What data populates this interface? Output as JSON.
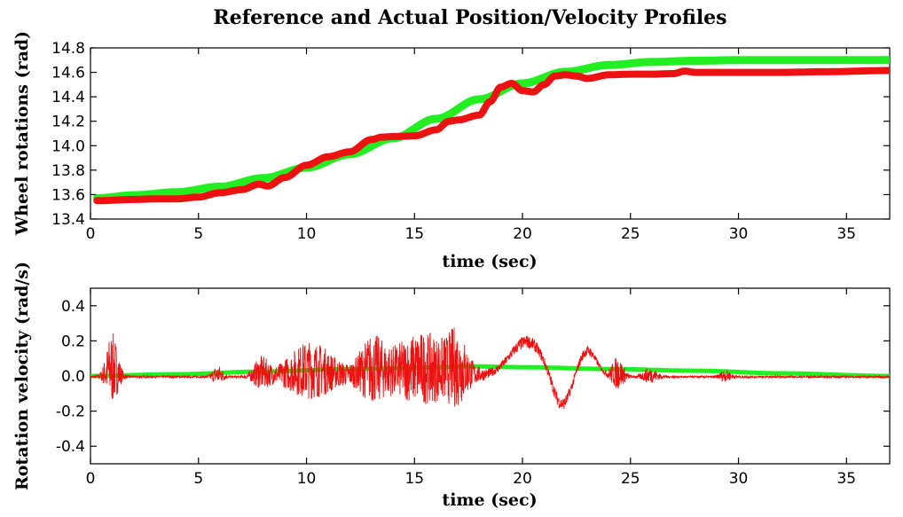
{
  "title": "Reference and Actual Position/Velocity Profiles",
  "colors": {
    "reference": "#22ee22",
    "actual": "#ee1111"
  },
  "chart_data": [
    {
      "type": "line",
      "xlabel": "time (sec)",
      "ylabel": "Wheel rotations (rad)",
      "xlim": [
        0,
        37
      ],
      "ylim": [
        13.4,
        14.8
      ],
      "xticks": [
        "0",
        "5",
        "10",
        "15",
        "20",
        "25",
        "30",
        "35"
      ],
      "yticks": [
        "13.4",
        "13.6",
        "13.8",
        "14.0",
        "14.2",
        "14.4",
        "14.6",
        "14.8"
      ],
      "series": [
        {
          "role": "reference",
          "x": [
            0.3,
            2,
            4,
            6,
            8,
            10,
            12,
            14,
            16,
            18,
            20,
            22,
            24,
            26,
            28,
            30,
            32,
            34,
            37
          ],
          "y": [
            13.57,
            13.595,
            13.62,
            13.665,
            13.735,
            13.82,
            13.93,
            14.06,
            14.22,
            14.38,
            14.51,
            14.605,
            14.66,
            14.685,
            14.695,
            14.7,
            14.7,
            14.7,
            14.7
          ]
        },
        {
          "role": "actual",
          "x": [
            0.3,
            2,
            3,
            4,
            5,
            6,
            7,
            7.8,
            8.2,
            9,
            10,
            11,
            12,
            13,
            13.5,
            14,
            15,
            16,
            16.6,
            17,
            18,
            18.5,
            19,
            19.5,
            20,
            20.5,
            21,
            21.5,
            22,
            22.5,
            23,
            24,
            25,
            26,
            27,
            27.5,
            28,
            30,
            32,
            34,
            37
          ],
          "y": [
            13.55,
            13.56,
            13.565,
            13.565,
            13.58,
            13.615,
            13.64,
            13.685,
            13.67,
            13.74,
            13.84,
            13.91,
            13.95,
            14.05,
            14.07,
            14.075,
            14.08,
            14.13,
            14.2,
            14.21,
            14.25,
            14.36,
            14.48,
            14.51,
            14.45,
            14.44,
            14.5,
            14.57,
            14.58,
            14.57,
            14.55,
            14.58,
            14.585,
            14.585,
            14.59,
            14.61,
            14.6,
            14.6,
            14.6,
            14.605,
            14.615
          ]
        }
      ]
    },
    {
      "type": "line",
      "xlabel": "time (sec)",
      "ylabel": "Rotation velocity (rad/s)",
      "xlim": [
        0,
        37
      ],
      "ylim": [
        -0.5,
        0.5
      ],
      "xticks": [
        "0",
        "5",
        "10",
        "15",
        "20",
        "25",
        "30",
        "35"
      ],
      "yticks": [
        "-0.4",
        "-0.2",
        "0.0",
        "0.2",
        "0.4"
      ],
      "series": [
        {
          "role": "reference",
          "x": [
            0,
            4,
            8,
            12,
            16,
            17.5,
            20,
            24,
            28,
            32,
            37
          ],
          "y": [
            0.0,
            0.01,
            0.025,
            0.04,
            0.05,
            0.055,
            0.05,
            0.04,
            0.03,
            0.015,
            0.0
          ]
        },
        {
          "role": "actual",
          "bursts": [
            {
              "center": 1.0,
              "width": 0.35,
              "amp": 0.2
            },
            {
              "center": 5.9,
              "width": 0.3,
              "amp": 0.05
            },
            {
              "center": 7.9,
              "width": 0.45,
              "amp": 0.08
            },
            {
              "center": 10.2,
              "width": 1.4,
              "amp": 0.16
            },
            {
              "center": 13.0,
              "width": 0.7,
              "amp": 0.14
            },
            {
              "center": 15.4,
              "width": 2.0,
              "amp": 0.2
            },
            {
              "center": 17.0,
              "width": 0.5,
              "amp": 0.12
            },
            {
              "center": 24.4,
              "width": 0.35,
              "amp": 0.09
            },
            {
              "center": 25.9,
              "width": 0.4,
              "amp": 0.04
            },
            {
              "center": 29.4,
              "width": 0.3,
              "amp": 0.03
            }
          ],
          "waves": [
            {
              "center": 20.2,
              "width": 1.1,
              "amp": 0.2
            },
            {
              "center": 21.8,
              "width": 0.6,
              "amp": -0.18
            },
            {
              "center": 23.0,
              "width": 0.6,
              "amp": 0.15
            }
          ]
        }
      ]
    }
  ]
}
